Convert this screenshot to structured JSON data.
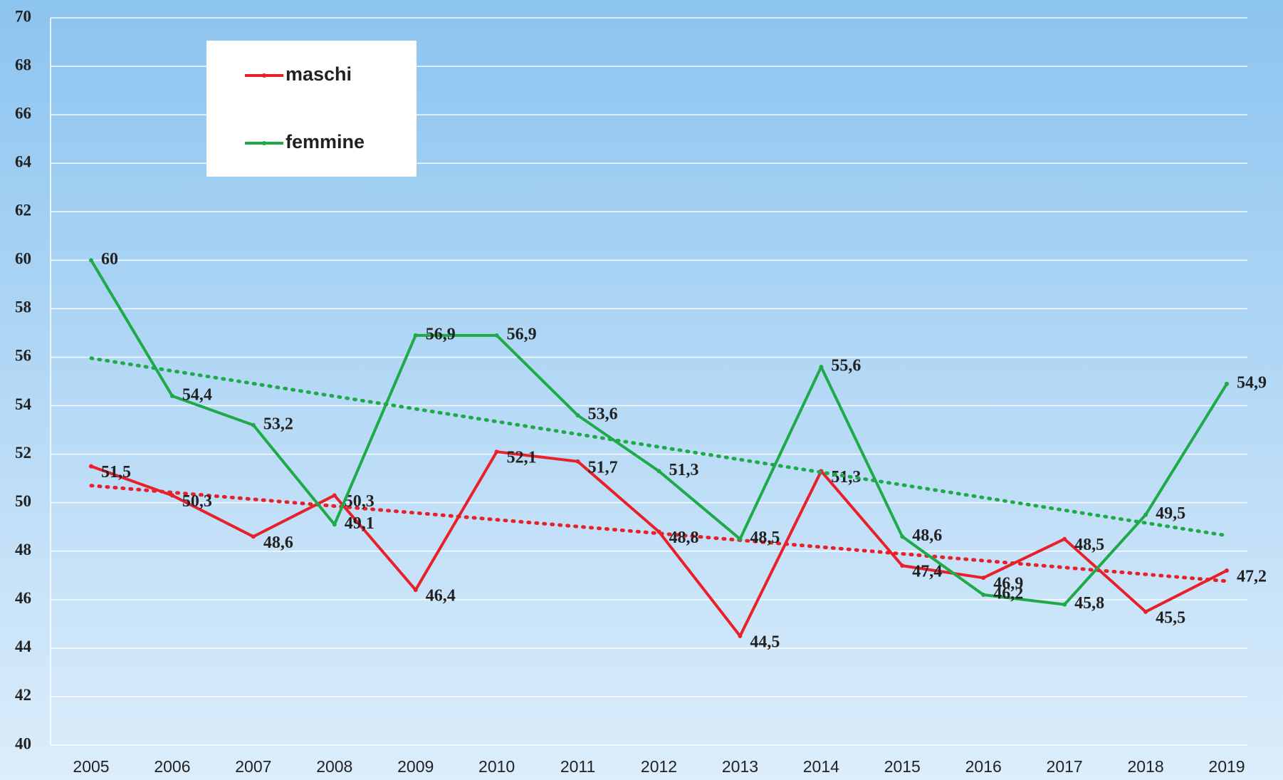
{
  "chart_data": {
    "type": "line",
    "categories": [
      "2005",
      "2006",
      "2007",
      "2008",
      "2009",
      "2010",
      "2011",
      "2012",
      "2013",
      "2014",
      "2015",
      "2016",
      "2017",
      "2018",
      "2019"
    ],
    "series": [
      {
        "name": "maschi",
        "color": "#e8202a",
        "values": [
          51.5,
          50.3,
          48.6,
          50.3,
          46.4,
          52.1,
          51.7,
          48.8,
          44.5,
          51.3,
          47.4,
          46.9,
          48.5,
          45.5,
          47.2
        ],
        "value_labels": [
          "51,5",
          "50,3",
          "48,6",
          "50,3",
          "46,4",
          "52,1",
          "51,7",
          "48,8",
          "44,5",
          "51,3",
          "47,4",
          "46,9",
          "48,5",
          "45,5",
          "47,2"
        ]
      },
      {
        "name": "femmine",
        "color": "#1faa4a",
        "values": [
          60,
          54.4,
          53.2,
          49.1,
          56.9,
          56.9,
          53.6,
          51.3,
          48.5,
          55.6,
          48.6,
          46.2,
          45.8,
          49.5,
          54.9
        ],
        "value_labels": [
          "60",
          "54,4",
          "53,2",
          "49,1",
          "56,9",
          "56,9",
          "53,6",
          "51,3",
          "48,5",
          "55,6",
          "48,6",
          "46,2",
          "45,8",
          "49,5",
          "54,9"
        ]
      }
    ],
    "ylim": [
      40,
      70
    ],
    "yticks": [
      40,
      42,
      44,
      46,
      48,
      50,
      52,
      54,
      56,
      58,
      60,
      62,
      64,
      66,
      68,
      70
    ],
    "grid": true,
    "trendline": true,
    "legend": "upper left"
  }
}
